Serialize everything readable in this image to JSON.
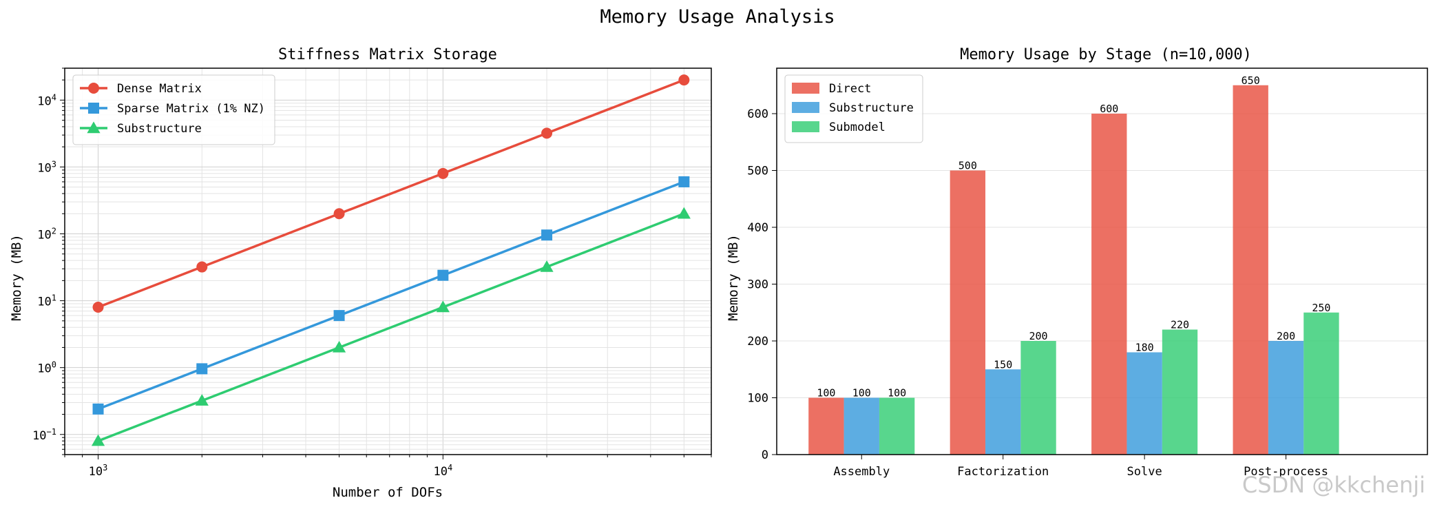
{
  "figure": {
    "suptitle": "Memory Usage Analysis",
    "watermark": "CSDN @kkchenji"
  },
  "chart_data": [
    {
      "type": "line",
      "title": "Stiffness Matrix Storage",
      "xlabel": "Number of DOFs",
      "ylabel": "Memory (MB)",
      "xscale": "log",
      "yscale": "log",
      "xlim": [
        800,
        60000
      ],
      "ylim": [
        0.05,
        30000
      ],
      "xticks": [
        {
          "value": 1000,
          "base": "10",
          "exp": "3"
        },
        {
          "value": 10000,
          "base": "10",
          "exp": "4"
        }
      ],
      "yticks": [
        {
          "value": 0.1,
          "base": "10",
          "exp": "−1"
        },
        {
          "value": 1,
          "base": "10",
          "exp": "0"
        },
        {
          "value": 10,
          "base": "10",
          "exp": "1"
        },
        {
          "value": 100,
          "base": "10",
          "exp": "2"
        },
        {
          "value": 1000,
          "base": "10",
          "exp": "3"
        },
        {
          "value": 10000,
          "base": "10",
          "exp": "4"
        }
      ],
      "grid": true,
      "legend_position": "top-left",
      "x": [
        1000,
        2000,
        5000,
        10000,
        20000,
        50000
      ],
      "series": [
        {
          "name": "Dense Matrix",
          "color": "#e74c3c",
          "marker": "circle",
          "values": [
            8,
            32,
            200,
            800,
            3200,
            20000
          ]
        },
        {
          "name": "Sparse Matrix (1% NZ)",
          "color": "#3498db",
          "marker": "square",
          "values": [
            0.24,
            0.96,
            6,
            24,
            96,
            600
          ]
        },
        {
          "name": "Substructure",
          "color": "#2ecc71",
          "marker": "triangle",
          "values": [
            0.08,
            0.32,
            2,
            8,
            32,
            200
          ]
        }
      ]
    },
    {
      "type": "bar",
      "title": "Memory Usage by Stage (n=10,000)",
      "xlabel": "",
      "ylabel": "Memory (MB)",
      "ylim": [
        0,
        680
      ],
      "yticks": [
        0,
        100,
        200,
        300,
        400,
        500,
        600
      ],
      "grid": true,
      "legend_position": "top-left",
      "categories": [
        "Assembly",
        "Factorization",
        "Solve",
        "Post-process"
      ],
      "series": [
        {
          "name": "Direct",
          "color": "#e74c3c",
          "values": [
            100,
            500,
            600,
            650
          ]
        },
        {
          "name": "Substructure",
          "color": "#3498db",
          "values": [
            100,
            150,
            180,
            200
          ]
        },
        {
          "name": "Submodel",
          "color": "#2ecc71",
          "values": [
            100,
            200,
            220,
            250
          ]
        }
      ]
    }
  ]
}
